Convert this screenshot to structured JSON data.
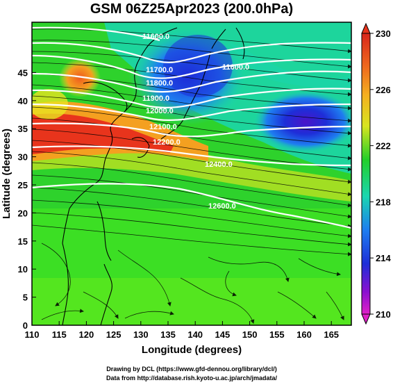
{
  "title": "GSM 06Z25Apr2023 (200.0hPa)",
  "x_axis": {
    "label": "Longitude (degrees)",
    "ticks": [
      "110",
      "115",
      "120",
      "125",
      "130",
      "135",
      "140",
      "145",
      "150",
      "155",
      "160",
      "165"
    ]
  },
  "y_axis": {
    "label": "Latitude  (degrees)",
    "ticks": [
      "0",
      "5",
      "10",
      "15",
      "20",
      "25",
      "30",
      "35",
      "40",
      "45"
    ]
  },
  "colorbar": {
    "labels": [
      "230",
      "226",
      "222",
      "218",
      "214",
      "210"
    ],
    "colors": [
      "#d9261c",
      "#ef5a1e",
      "#f4a020",
      "#e8e420",
      "#1fcf2a",
      "#1ad6b0",
      "#1e7ef0",
      "#1e2ed8",
      "#8a10d0",
      "#e020c8"
    ]
  },
  "contours": {
    "labels": [
      "11600.0",
      "11700.0",
      "11800.0",
      "11900.0",
      "12000.0",
      "12100.0",
      "12200.0",
      "12400.0",
      "12600.0"
    ]
  },
  "credits": {
    "line1": "Drawing by DCL (https://www.gfd-dennou.org/library/dcl/)",
    "line2": "Data from http://database.rish.kyoto-u.ac.jp/arch/jmadata/"
  }
}
